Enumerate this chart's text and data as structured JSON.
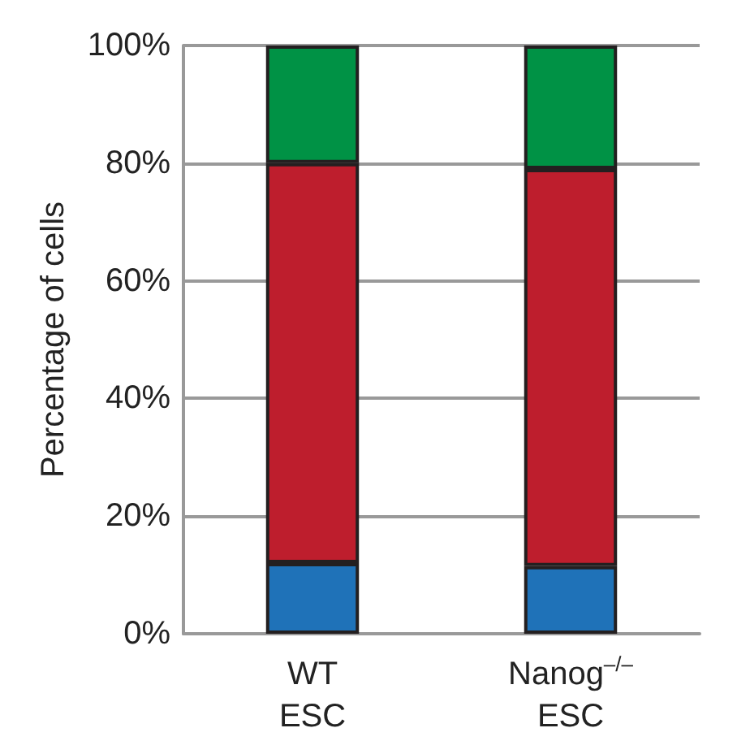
{
  "chart_data": {
    "type": "bar",
    "stacked": true,
    "ylabel": "Percentage of cells",
    "categories": [
      "WT\nESC",
      "Nanog$^{–/–}$\nESC"
    ],
    "series": [
      {
        "color": "#1f72b8",
        "values": [
          12,
          11.5
        ]
      },
      {
        "color": "#be1e2d",
        "values": [
          68,
          67.5
        ]
      },
      {
        "color": "#009245",
        "values": [
          20,
          21
        ]
      }
    ],
    "ylim": [
      0,
      100
    ],
    "yticks": [
      {
        "value": 0,
        "label": "0%"
      },
      {
        "value": 20,
        "label": "20%"
      },
      {
        "value": 40,
        "label": "40%"
      },
      {
        "value": 60,
        "label": "60%"
      },
      {
        "value": 80,
        "label": "80%"
      },
      {
        "value": 100,
        "label": "100%"
      }
    ],
    "grid": "y"
  }
}
